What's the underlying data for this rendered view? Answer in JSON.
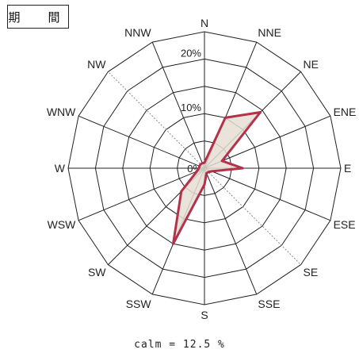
{
  "panel_label": "期　間",
  "calm_text": "calm = 12.5 %",
  "chart_data": {
    "type": "radar",
    "title": "",
    "directions": [
      "N",
      "NNE",
      "NE",
      "ENE",
      "E",
      "ESE",
      "SE",
      "SSE",
      "S",
      "SSW",
      "SW",
      "WSW",
      "W",
      "WNW",
      "NW",
      "NNW"
    ],
    "values": [
      1.0,
      10.0,
      14.5,
      3.5,
      7.0,
      1.5,
      1.0,
      1.0,
      3.0,
      15.0,
      6.0,
      1.5,
      1.0,
      1.0,
      1.0,
      1.0
    ],
    "unit": "%",
    "rmax": 25,
    "ring_labels": [
      {
        "value": 0,
        "label": "0%"
      },
      {
        "value": 10,
        "label": "10%"
      },
      {
        "value": 20,
        "label": "20%"
      }
    ],
    "rings": [
      5,
      10,
      15,
      20,
      25
    ],
    "dashed_spokes": [
      "NW",
      "SE"
    ],
    "colors": {
      "line": "#b3324a",
      "fill": "#e6ded2",
      "grid": "#222222",
      "dashed": "#888888"
    }
  }
}
